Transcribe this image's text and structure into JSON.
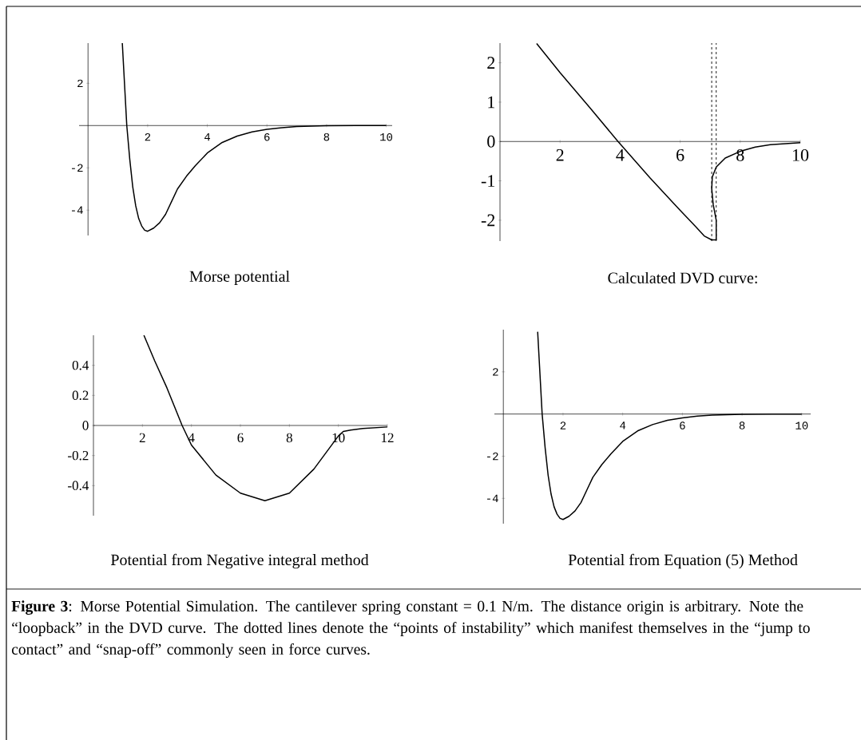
{
  "chart_data": [
    {
      "type": "line",
      "title": "Morse potential",
      "color": "#000000",
      "x": [
        1.15,
        1.2,
        1.3,
        1.4,
        1.5,
        1.6,
        1.7,
        1.8,
        1.9,
        2.0,
        2.2,
        2.4,
        2.6,
        2.8,
        3.0,
        3.3,
        3.6,
        4.0,
        4.5,
        5.0,
        5.5,
        6.0,
        6.5,
        7.0,
        8.0,
        9.0,
        10.0
      ],
      "values": [
        3.9,
        2.6,
        0.0,
        -1.6,
        -2.9,
        -3.8,
        -4.4,
        -4.75,
        -4.95,
        -5.0,
        -4.85,
        -4.6,
        -4.2,
        -3.6,
        -3.0,
        -2.4,
        -1.9,
        -1.3,
        -0.8,
        -0.5,
        -0.3,
        -0.18,
        -0.1,
        -0.05,
        -0.01,
        0.0,
        0.0
      ],
      "xlim": [
        -0.3,
        10.2
      ],
      "ylim": [
        -5.2,
        3.9
      ],
      "xticks": [
        2,
        4,
        6,
        8,
        10
      ],
      "yticks": [
        -4,
        -2,
        2
      ]
    },
    {
      "type": "line",
      "title": "Calculated DVD curve:",
      "color": "#000000",
      "x": [
        1.22,
        2.0,
        3.0,
        3.93,
        5.0,
        6.0,
        6.5,
        6.8,
        7.05,
        7.2,
        7.2,
        7.1,
        7.05,
        7.07,
        7.2,
        7.5,
        8.0,
        8.5,
        9.0,
        10.0
      ],
      "values": [
        2.49,
        1.75,
        0.85,
        0.0,
        -0.93,
        -1.75,
        -2.15,
        -2.4,
        -2.5,
        -2.5,
        -2.0,
        -1.6,
        -1.2,
        -0.9,
        -0.65,
        -0.42,
        -0.25,
        -0.14,
        -0.08,
        -0.03
      ],
      "xlim": [
        0,
        10
      ],
      "ylim": [
        -2.53,
        2.5
      ],
      "xticks": [
        2,
        4,
        6,
        8,
        10
      ],
      "yticks": [
        -2,
        -1,
        0,
        1,
        2
      ],
      "ref_lines": [
        {
          "axis": "x",
          "value": 7.05,
          "line_style": "dashed"
        },
        {
          "axis": "x",
          "value": 7.2,
          "line_style": "dashed"
        }
      ]
    },
    {
      "type": "line",
      "title": "Potential from Negative integral method",
      "color": "#000000",
      "x": [
        2.06,
        2.5,
        3.0,
        3.62,
        4.0,
        5.0,
        6.0,
        7.0,
        8.0,
        9.0,
        9.5,
        10.0,
        10.2,
        10.5,
        11.0,
        12.0
      ],
      "values": [
        0.6,
        0.43,
        0.25,
        0.0,
        -0.13,
        -0.33,
        -0.45,
        -0.5,
        -0.45,
        -0.29,
        -0.18,
        -0.07,
        -0.04,
        -0.03,
        -0.02,
        -0.01
      ],
      "xlim": [
        0,
        12
      ],
      "ylim": [
        -0.6,
        0.6
      ],
      "xticks": [
        2,
        4,
        6,
        8,
        10,
        12
      ],
      "yticks": [
        -0.4,
        -0.2,
        0,
        0.2,
        0.4
      ]
    },
    {
      "type": "line",
      "title": "Potential from Equation (5) Method",
      "color": "#000000",
      "x": [
        1.15,
        1.2,
        1.3,
        1.4,
        1.5,
        1.6,
        1.7,
        1.8,
        1.9,
        2.0,
        2.2,
        2.4,
        2.6,
        2.8,
        3.0,
        3.3,
        3.6,
        4.0,
        4.5,
        5.0,
        5.5,
        6.0,
        6.5,
        7.0,
        8.0,
        9.0,
        10.0
      ],
      "values": [
        3.9,
        2.6,
        0.0,
        -1.6,
        -2.9,
        -3.8,
        -4.4,
        -4.75,
        -4.95,
        -5.0,
        -4.85,
        -4.6,
        -4.2,
        -3.6,
        -3.0,
        -2.4,
        -1.9,
        -1.3,
        -0.8,
        -0.5,
        -0.3,
        -0.18,
        -0.1,
        -0.05,
        -0.01,
        0.0,
        0.0
      ],
      "xlim": [
        -0.3,
        10.3
      ],
      "ylim": [
        -5.2,
        4.0
      ],
      "xticks": [
        2,
        4,
        6,
        8,
        10
      ],
      "yticks": [
        -4,
        -2,
        2
      ],
      "annotations": [
        "**Figure 3**: Morse Potential Simulation.  The cantilever spring constant = 0.1 N/m.  The distance origin is arbitrary.  Note the “loopback” in the DVD curve.  The dotted lines denote the “points of instability” which manifest themselves in the “jump to contact” and “snap-off” commonly seen in force curves."
      ]
    }
  ]
}
